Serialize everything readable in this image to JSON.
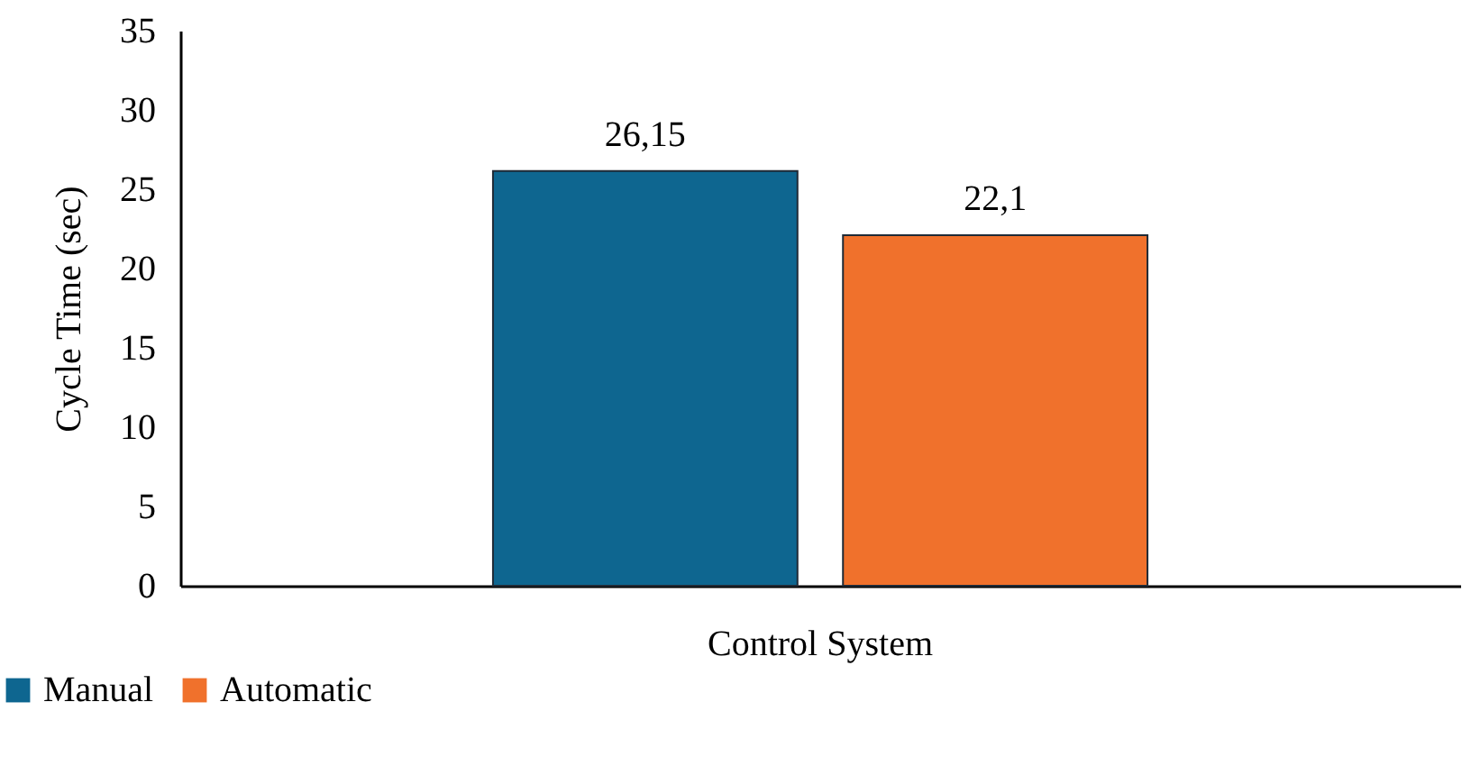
{
  "chart_data": {
    "type": "bar",
    "ylabel": "Cycle Time (sec)",
    "categories": [
      "Control System"
    ],
    "series": [
      {
        "name": "Manual",
        "color": "#0e6690",
        "values": [
          26.15
        ],
        "value_labels": [
          "26,15"
        ]
      },
      {
        "name": "Automatic",
        "color": "#f0712c",
        "values": [
          22.1
        ],
        "value_labels": [
          "22,1"
        ]
      }
    ],
    "ylim": [
      0,
      35
    ],
    "yticks": [
      0,
      5,
      10,
      15,
      20,
      25,
      30,
      35
    ],
    "grid": false,
    "legend": "bottom left"
  }
}
